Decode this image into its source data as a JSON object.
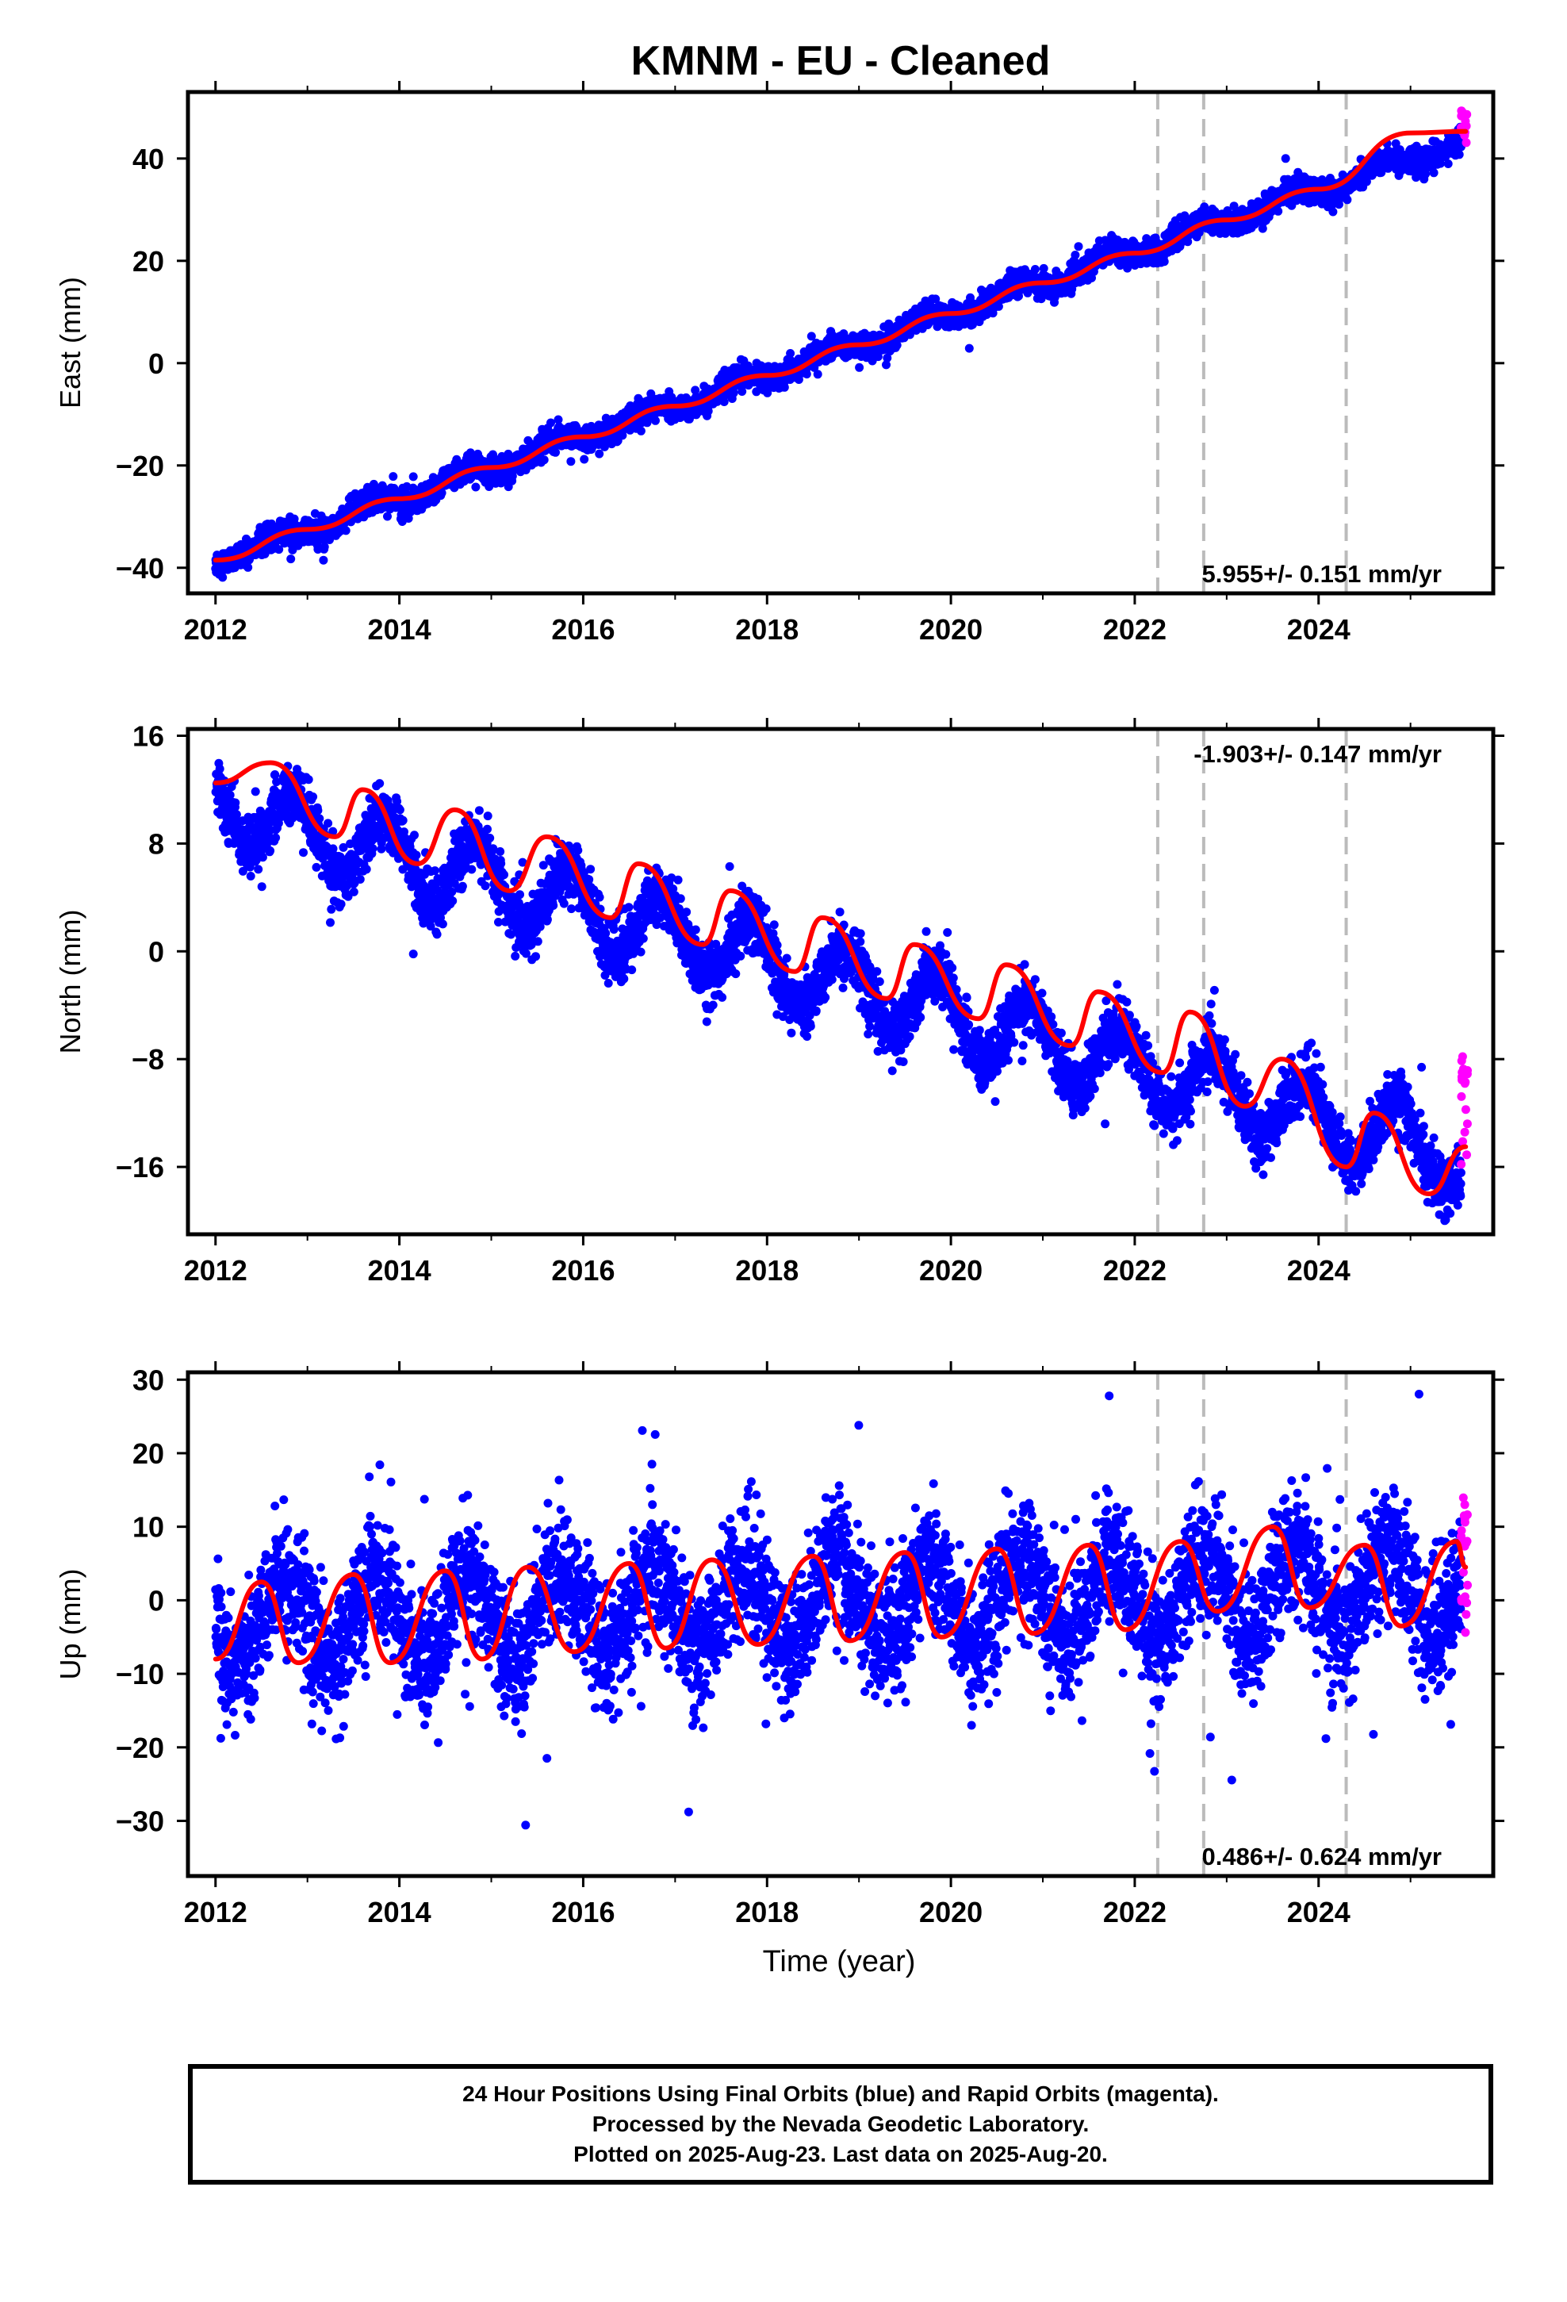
{
  "title": "KMNM  - EU - Cleaned",
  "caption": [
    "24 Hour Positions Using Final Orbits (blue) and Rapid Orbits (magenta).",
    "Processed by the Nevada Geodetic Laboratory.",
    "Plotted on 2025-Aug-23. Last data on 2025-Aug-20."
  ],
  "colors": {
    "final_orbits": "#0000ff",
    "rapid_orbits": "#ff00ff",
    "model_fit": "#ff0000",
    "event_lines": "#bbbbbb"
  },
  "chart_data": [
    {
      "type": "scatter",
      "ylabel": "East (mm)",
      "xlabel": "",
      "xlim": [
        2011.7,
        2025.9
      ],
      "ylim": [
        -45,
        53
      ],
      "x_ticks": [
        "2012",
        "2014",
        "2016",
        "2018",
        "2020",
        "2022",
        "2024"
      ],
      "y_ticks": [
        "40",
        "20",
        "0",
        "−20",
        "−40"
      ],
      "y_tick_values": [
        40,
        20,
        0,
        -20,
        -40
      ],
      "rate_label": "5.955+/- 0.151 mm/yr",
      "rate_label_position": "bottom-right",
      "grid": false,
      "event_lines_x": [
        2022.25,
        2022.75,
        2024.3
      ],
      "trend": {
        "t0": 2012.0,
        "y0": -38.5,
        "rate": 6.04,
        "annual_amp": 1.4,
        "annual_phase_year": 0.45,
        "noise_mm": 1.2,
        "outlier_rate": 0.01
      },
      "fit_points": [
        [
          2012.0,
          -38.5
        ],
        [
          2013.0,
          -32.5
        ],
        [
          2014.0,
          -26.5
        ],
        [
          2015.0,
          -20.4
        ],
        [
          2016.0,
          -14.4
        ],
        [
          2017.0,
          -8.4
        ],
        [
          2018.0,
          -2.4
        ],
        [
          2019.0,
          3.6
        ],
        [
          2020.0,
          9.7
        ],
        [
          2021.0,
          15.7
        ],
        [
          2022.0,
          21.5
        ],
        [
          2023.0,
          28.0
        ],
        [
          2024.0,
          34.0
        ],
        [
          2025.0,
          45.0
        ],
        [
          2025.6,
          45.3
        ]
      ],
      "rapid_points": {
        "x_range": [
          2025.55,
          2025.62
        ],
        "y_range": [
          43,
          50
        ],
        "count": 16
      },
      "series": [
        {
          "name": "Final Orbits",
          "color": "#0000ff"
        },
        {
          "name": "Rapid Orbits",
          "color": "#ff00ff"
        }
      ]
    },
    {
      "type": "scatter",
      "ylabel": "North (mm)",
      "xlabel": "",
      "xlim": [
        2011.7,
        2025.9
      ],
      "ylim": [
        -21,
        16.5
      ],
      "x_ticks": [
        "2012",
        "2014",
        "2016",
        "2018",
        "2020",
        "2022",
        "2024"
      ],
      "y_ticks": [
        "16",
        "8",
        "0",
        "−8",
        "−16"
      ],
      "y_tick_values": [
        16,
        8,
        0,
        -8,
        -16
      ],
      "rate_label": "-1.903+/- 0.147 mm/yr",
      "rate_label_position": "top-right",
      "grid": false,
      "event_lines_x": [
        2022.25,
        2022.75,
        2024.3
      ],
      "trend": {
        "t0": 2012.0,
        "y0": 11.0,
        "rate": -1.95,
        "annual_amp": 2.6,
        "annual_phase_year": 0.6,
        "noise_mm": 1.1,
        "outlier_rate": 0.01
      },
      "fit_points": [
        [
          2012.0,
          12.5
        ],
        [
          2012.6,
          14.0
        ],
        [
          2013.3,
          8.5
        ],
        [
          2013.6,
          12.0
        ],
        [
          2014.2,
          6.5
        ],
        [
          2014.6,
          10.5
        ],
        [
          2015.2,
          4.5
        ],
        [
          2015.6,
          8.5
        ],
        [
          2016.3,
          2.5
        ],
        [
          2016.6,
          6.5
        ],
        [
          2017.3,
          0.5
        ],
        [
          2017.6,
          4.5
        ],
        [
          2018.3,
          -1.5
        ],
        [
          2018.6,
          2.5
        ],
        [
          2019.3,
          -3.5
        ],
        [
          2019.6,
          0.5
        ],
        [
          2020.3,
          -5.0
        ],
        [
          2020.6,
          -1.0
        ],
        [
          2021.3,
          -7.0
        ],
        [
          2021.6,
          -3.0
        ],
        [
          2022.3,
          -9.0
        ],
        [
          2022.6,
          -4.5
        ],
        [
          2023.2,
          -11.5
        ],
        [
          2023.6,
          -8.0
        ],
        [
          2024.3,
          -16.0
        ],
        [
          2024.6,
          -12.0
        ],
        [
          2025.2,
          -18.0
        ],
        [
          2025.6,
          -14.5
        ]
      ],
      "rapid_points": {
        "x_range": [
          2025.55,
          2025.62
        ],
        "y_range": [
          -17,
          -6
        ],
        "count": 18
      },
      "series": [
        {
          "name": "Final Orbits",
          "color": "#0000ff"
        },
        {
          "name": "Rapid Orbits",
          "color": "#ff00ff"
        }
      ]
    },
    {
      "type": "scatter",
      "ylabel": "Up (mm)",
      "xlabel": "Time (year)",
      "xlim": [
        2011.7,
        2025.9
      ],
      "ylim": [
        -37.5,
        31
      ],
      "x_ticks": [
        "2012",
        "2014",
        "2016",
        "2018",
        "2020",
        "2022",
        "2024"
      ],
      "y_ticks": [
        "30",
        "20",
        "10",
        "0",
        "−10",
        "−20",
        "−30"
      ],
      "y_tick_values": [
        30,
        20,
        10,
        0,
        -10,
        -20,
        -30
      ],
      "rate_label": "0.486+/- 0.624 mm/yr",
      "rate_label_position": "bottom-right",
      "grid": false,
      "event_lines_x": [
        2022.25,
        2022.75,
        2024.3
      ],
      "trend": {
        "t0": 2012.0,
        "y0": -2.8,
        "rate": 0.35,
        "annual_amp": 5.8,
        "annual_phase_year": 0.5,
        "noise_mm": 4.2,
        "outlier_rate": 0.02
      },
      "fit_points": [
        [
          2012.0,
          -8.0
        ],
        [
          2012.5,
          2.5
        ],
        [
          2012.9,
          -8.5
        ],
        [
          2013.5,
          3.5
        ],
        [
          2013.9,
          -8.5
        ],
        [
          2014.5,
          4.0
        ],
        [
          2014.9,
          -8.0
        ],
        [
          2015.4,
          4.5
        ],
        [
          2015.9,
          -7.0
        ],
        [
          2016.5,
          5.0
        ],
        [
          2016.9,
          -6.5
        ],
        [
          2017.4,
          5.5
        ],
        [
          2017.9,
          -6.0
        ],
        [
          2018.5,
          6.0
        ],
        [
          2018.9,
          -5.5
        ],
        [
          2019.5,
          6.5
        ],
        [
          2019.9,
          -5.0
        ],
        [
          2020.5,
          7.0
        ],
        [
          2020.9,
          -4.5
        ],
        [
          2021.5,
          7.5
        ],
        [
          2021.9,
          -4.0
        ],
        [
          2022.5,
          8.0
        ],
        [
          2022.9,
          -1.5
        ],
        [
          2023.5,
          10.0
        ],
        [
          2023.9,
          -1.0
        ],
        [
          2024.5,
          7.5
        ],
        [
          2024.9,
          -3.5
        ],
        [
          2025.5,
          8.0
        ],
        [
          2025.6,
          4.5
        ]
      ],
      "rapid_points": {
        "x_range": [
          2025.55,
          2025.62
        ],
        "y_range": [
          -4.5,
          15
        ],
        "count": 20
      },
      "series": [
        {
          "name": "Final Orbits",
          "color": "#0000ff"
        },
        {
          "name": "Rapid Orbits",
          "color": "#ff00ff"
        }
      ]
    }
  ]
}
